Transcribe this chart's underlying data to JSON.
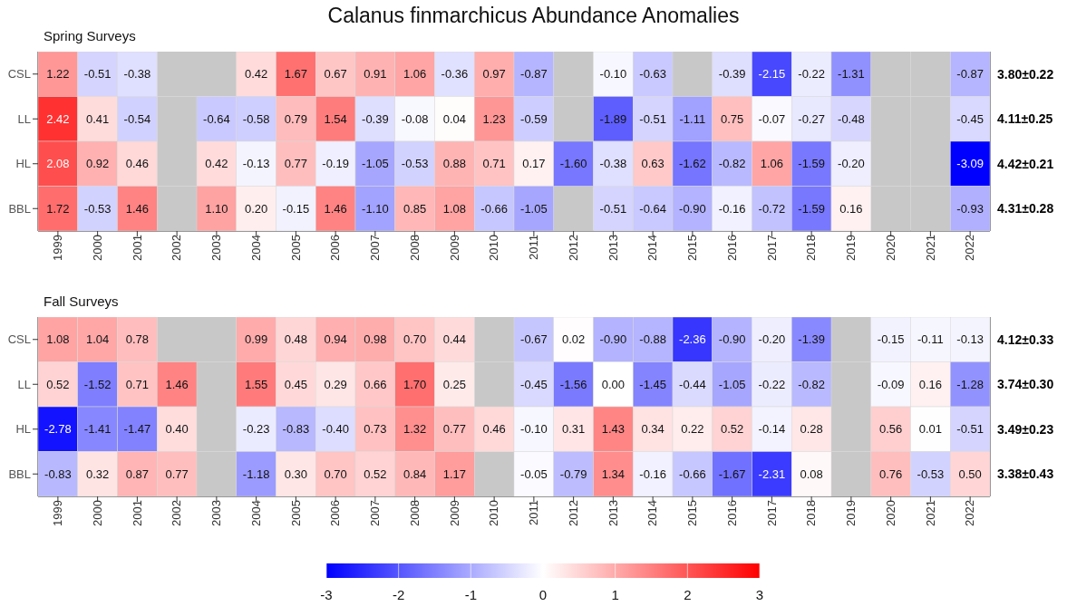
{
  "chart_data": [
    {
      "type": "heatmap",
      "title": "Calanus finmarchicus Abundance Anomalies",
      "subtitle": "Spring Surveys",
      "categories": [
        "1999",
        "2000",
        "2001",
        "2002",
        "2003",
        "2004",
        "2005",
        "2006",
        "2007",
        "2008",
        "2009",
        "2010",
        "2011",
        "2012",
        "2013",
        "2014",
        "2015",
        "2016",
        "2017",
        "2018",
        "2019",
        "2020",
        "2021",
        "2022"
      ],
      "y_categories": [
        "CSL",
        "LL",
        "HL",
        "BBL"
      ],
      "y2_categories": [
        "3.80±0.22",
        "4.11±0.25",
        "4.42±0.21",
        "4.31±0.28"
      ],
      "cells": [
        [
          1.22,
          -0.51,
          -0.38,
          null,
          null,
          0.42,
          1.67,
          0.67,
          0.91,
          1.06,
          -0.36,
          0.97,
          -0.87,
          null,
          -0.1,
          -0.63,
          null,
          -0.39,
          -2.15,
          -0.22,
          -1.31,
          null,
          null,
          -0.87
        ],
        [
          2.42,
          0.41,
          -0.54,
          null,
          -0.64,
          -0.58,
          0.79,
          1.54,
          -0.39,
          -0.08,
          0.04,
          1.23,
          -0.59,
          null,
          -1.89,
          -0.51,
          -1.11,
          0.75,
          -0.07,
          -0.27,
          -0.48,
          null,
          null,
          -0.45
        ],
        [
          2.08,
          0.92,
          0.46,
          null,
          0.42,
          -0.13,
          0.77,
          -0.19,
          -1.05,
          -0.53,
          0.88,
          0.71,
          0.17,
          -1.6,
          -0.38,
          0.63,
          -1.62,
          -0.82,
          1.06,
          -1.59,
          -0.2,
          null,
          null,
          -3.09
        ],
        [
          1.72,
          -0.53,
          1.46,
          null,
          1.1,
          0.2,
          -0.15,
          1.46,
          -1.1,
          0.85,
          1.08,
          -0.66,
          -1.05,
          null,
          -0.51,
          -0.64,
          -0.9,
          -0.16,
          -0.72,
          -1.59,
          0.16,
          null,
          null,
          -0.93
        ]
      ],
      "cell_labels": [
        [
          "1.22",
          "-0.51",
          "-0.38",
          null,
          null,
          "0.42",
          "1.67",
          "0.67",
          "0.91",
          "1.06",
          "-0.36",
          "0.97",
          "-0.87",
          null,
          "-0.10",
          "-0.63",
          null,
          "-0.39",
          "-2.15",
          "-0.22",
          "-1.31",
          null,
          null,
          "-0.87"
        ],
        [
          "2.42",
          "0.41",
          "-0.54",
          null,
          "-0.64",
          "-0.58",
          "0.79",
          "1.54",
          "-0.39",
          "-0.08",
          "0.04",
          "1.23",
          "-0.59",
          null,
          "-1.89",
          "-0.51",
          "-1.11",
          "0.75",
          "-0.07",
          "-0.27",
          "-0.48",
          null,
          null,
          "-0.45"
        ],
        [
          "2.08",
          "0.92",
          "0.46",
          null,
          "0.42",
          "-0.13",
          "0.77",
          "-0.19",
          "-1.05",
          "-0.53",
          "0.88",
          "0.71",
          "0.17",
          "-1.60",
          "-0.38",
          "0.63",
          "-1.62",
          "-0.82",
          "1.06",
          "-1.59",
          "-0.20",
          null,
          null,
          "-3.09"
        ],
        [
          "1.72",
          "-0.53",
          "1.46",
          null,
          "1.10",
          "0.20",
          "-0.15",
          "1.46",
          "-1.10",
          "0.85",
          "1.08",
          "-0.66",
          "-1.05",
          null,
          "-0.51",
          "-0.64",
          "-0.90",
          "-0.16",
          "-0.72",
          "-1.59",
          "0.16",
          null,
          null,
          "-0.93"
        ]
      ]
    },
    {
      "type": "heatmap",
      "subtitle": "Fall Surveys",
      "categories": [
        "1999",
        "2000",
        "2001",
        "2002",
        "2003",
        "2004",
        "2005",
        "2006",
        "2007",
        "2008",
        "2009",
        "2010",
        "2011",
        "2012",
        "2013",
        "2014",
        "2015",
        "2016",
        "2017",
        "2018",
        "2019",
        "2020",
        "2021",
        "2022"
      ],
      "y_categories": [
        "CSL",
        "LL",
        "HL",
        "BBL"
      ],
      "y2_categories": [
        "4.12±0.33",
        "3.74±0.30",
        "3.49±0.23",
        "3.38±0.43"
      ],
      "cells": [
        [
          1.08,
          1.04,
          0.78,
          null,
          null,
          0.99,
          0.48,
          0.94,
          0.98,
          0.7,
          0.44,
          null,
          -0.67,
          0.02,
          -0.9,
          -0.88,
          -2.36,
          -0.9,
          -0.2,
          -1.39,
          null,
          -0.15,
          -0.11,
          -0.13
        ],
        [
          0.52,
          -1.52,
          0.71,
          1.46,
          null,
          1.55,
          0.45,
          0.29,
          0.66,
          1.7,
          0.25,
          null,
          -0.45,
          -1.56,
          0.0,
          -1.45,
          -0.44,
          -1.05,
          -0.22,
          -0.82,
          null,
          -0.09,
          0.16,
          -1.28
        ],
        [
          -2.78,
          -1.41,
          -1.47,
          0.4,
          null,
          -0.23,
          -0.83,
          -0.4,
          0.73,
          1.32,
          0.77,
          0.46,
          -0.1,
          0.31,
          1.43,
          0.34,
          0.22,
          0.52,
          -0.14,
          0.28,
          null,
          0.56,
          0.01,
          -0.51
        ],
        [
          -0.83,
          0.32,
          0.87,
          0.77,
          null,
          -1.18,
          0.3,
          0.7,
          0.52,
          0.84,
          1.17,
          null,
          -0.05,
          -0.79,
          1.34,
          -0.16,
          -0.66,
          -1.67,
          -2.31,
          0.08,
          null,
          0.76,
          -0.53,
          0.5
        ]
      ],
      "cell_labels": [
        [
          "1.08",
          "1.04",
          "0.78",
          null,
          null,
          "0.99",
          "0.48",
          "0.94",
          "0.98",
          "0.70",
          "0.44",
          null,
          "-0.67",
          "0.02",
          "-0.90",
          "-0.88",
          "-2.36",
          "-0.90",
          "-0.20",
          "-1.39",
          null,
          "-0.15",
          "-0.11",
          "-0.13"
        ],
        [
          "0.52",
          "-1.52",
          "0.71",
          "1.46",
          null,
          "1.55",
          "0.45",
          "0.29",
          "0.66",
          "1.70",
          "0.25",
          null,
          "-0.45",
          "-1.56",
          "0.00",
          "-1.45",
          "-0.44",
          "-1.05",
          "-0.22",
          "-0.82",
          null,
          "-0.09",
          "0.16",
          "-1.28"
        ],
        [
          "-2.78",
          "-1.41",
          "-1.47",
          "0.40",
          null,
          "-0.23",
          "-0.83",
          "-0.40",
          "0.73",
          "1.32",
          "0.77",
          "0.46",
          "-0.10",
          "0.31",
          "1.43",
          "0.34",
          "0.22",
          "0.52",
          "-0.14",
          "0.28",
          null,
          "0.56",
          "0.01",
          "-0.51"
        ],
        [
          "-0.83",
          "0.32",
          "0.87",
          "0.77",
          null,
          "-1.18",
          "0.30",
          "0.70",
          "0.52",
          "0.84",
          "1.17",
          null,
          "-0.05",
          "-0.79",
          "1.34",
          "-0.16",
          "-0.66",
          "-1.67",
          "-2.31",
          "0.08",
          null,
          "0.76",
          "-0.53",
          "0.50"
        ]
      ],
      "clim": [
        -3,
        3
      ],
      "cticks": [
        -3,
        -2,
        -1,
        0,
        1,
        2,
        3
      ]
    }
  ]
}
